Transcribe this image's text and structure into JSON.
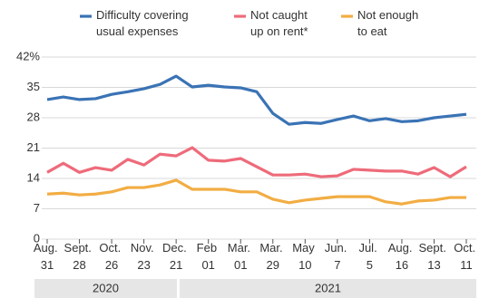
{
  "chart_data": {
    "type": "line",
    "categories": [
      "Aug. 31",
      null,
      "Sept. 28",
      null,
      "Oct. 26",
      null,
      "Nov. 23",
      null,
      "Dec. 21",
      null,
      "Feb 01",
      null,
      "Mar. 01",
      null,
      "Mar. 29",
      null,
      "May 10",
      null,
      "Jun. 7",
      null,
      "Jul. 5",
      null,
      "Aug. 16",
      null,
      "Sept. 13",
      null,
      "Oct. 11"
    ],
    "series": [
      {
        "name": "Difficulty covering usual expenses",
        "color": "#3a73b5",
        "values": [
          32.2,
          32.8,
          32.2,
          32.4,
          33.4,
          34.0,
          34.7,
          35.7,
          37.6,
          35.1,
          35.5,
          35.1,
          34.9,
          34.0,
          29.0,
          26.5,
          26.9,
          26.7,
          27.6,
          28.4,
          27.3,
          27.8,
          27.1,
          27.3,
          28.0,
          28.4,
          28.8
        ]
      },
      {
        "name": "Not caught up on rent*",
        "color": "#ee6b7a",
        "values": [
          15.4,
          17.5,
          15.4,
          16.5,
          15.9,
          18.4,
          17.1,
          19.6,
          19.2,
          21.1,
          18.2,
          18.0,
          18.6,
          16.7,
          14.8,
          14.8,
          15.0,
          14.4,
          14.6,
          16.1,
          15.9,
          15.7,
          15.7,
          15.0,
          16.5,
          14.4,
          16.7
        ]
      },
      {
        "name": "Not enough to eat",
        "color": "#f2ad43",
        "values": [
          10.4,
          10.6,
          10.2,
          10.4,
          10.9,
          11.9,
          11.9,
          12.5,
          13.6,
          11.5,
          11.5,
          11.5,
          10.9,
          10.9,
          9.2,
          8.4,
          9.0,
          9.4,
          9.8,
          9.8,
          9.8,
          8.6,
          8.1,
          8.8,
          9.0,
          9.6,
          9.6
        ]
      }
    ],
    "years": [
      "2020",
      "2021"
    ],
    "ylim": [
      0,
      42
    ],
    "yticks": [
      0,
      7,
      14,
      21,
      28,
      35,
      {
        "value": 42,
        "label": "42%"
      }
    ],
    "grid": true
  }
}
